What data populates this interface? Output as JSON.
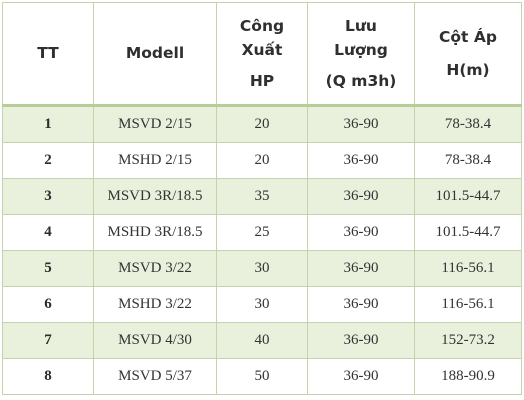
{
  "header": {
    "tt": "TT",
    "model": "Modell",
    "power": [
      "Công",
      "Xuất",
      "HP"
    ],
    "flow": [
      "Lưu",
      "Lượng",
      "(Q m3h)"
    ],
    "head": [
      "Cột Áp",
      "H(m)"
    ]
  },
  "rows": [
    {
      "tt": "1",
      "model": "MSVD 2/15",
      "hp": "20",
      "flow": "36-90",
      "head": "78-38.4"
    },
    {
      "tt": "2",
      "model": "MSHD 2/15",
      "hp": "20",
      "flow": "36-90",
      "head": "78-38.4"
    },
    {
      "tt": "3",
      "model": "MSVD 3R/18.5",
      "hp": "35",
      "flow": "36-90",
      "head": "101.5-44.7"
    },
    {
      "tt": "4",
      "model": "MSHD 3R/18.5",
      "hp": "25",
      "flow": "36-90",
      "head": "101.5-44.7"
    },
    {
      "tt": "5",
      "model": "MSVD 3/22",
      "hp": "30",
      "flow": "36-90",
      "head": "116-56.1"
    },
    {
      "tt": "6",
      "model": "MSHD 3/22",
      "hp": "30",
      "flow": "36-90",
      "head": "116-56.1"
    },
    {
      "tt": "7",
      "model": "MSVD 4/30",
      "hp": "40",
      "flow": "36-90",
      "head": "152-73.2"
    },
    {
      "tt": "8",
      "model": "MSVD 5/37",
      "hp": "50",
      "flow": "36-90",
      "head": "188-90.9"
    }
  ],
  "colors": {
    "shaded_row": "#e9f1dd",
    "border": "#c4d3ae",
    "header_rule": "#b8cc98"
  }
}
